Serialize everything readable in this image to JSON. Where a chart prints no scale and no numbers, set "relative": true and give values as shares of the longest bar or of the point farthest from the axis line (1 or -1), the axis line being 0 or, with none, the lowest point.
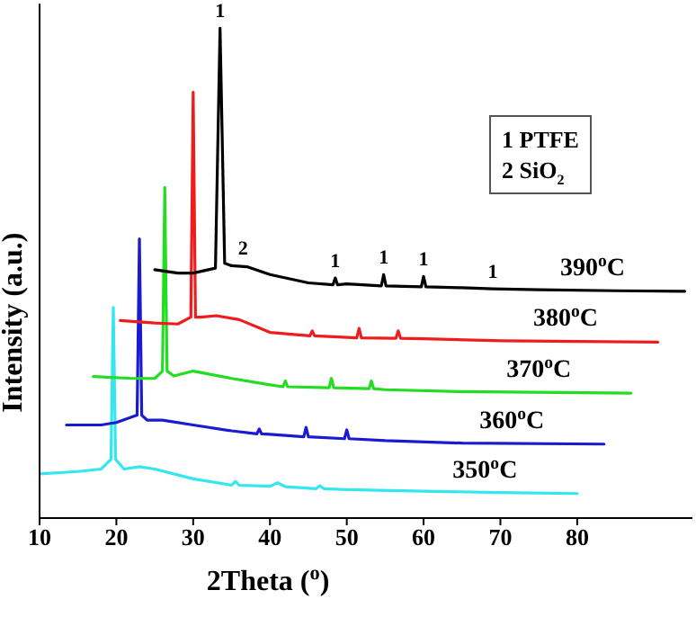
{
  "chart_data": {
    "type": "line",
    "relative": true,
    "xlabel": "2Theta ($^{o}$)",
    "ylabel": "Intensity (a.u.)",
    "xlim": [
      10,
      95
    ],
    "xticks": [
      10,
      20,
      30,
      40,
      50,
      60,
      70,
      80
    ],
    "grid": false,
    "legend": false,
    "marker": "none",
    "line_style": "solid",
    "series": [
      {
        "name": "350$^{o}$C",
        "color": "#33e6f0",
        "x": [
          10,
          15,
          18,
          19.3,
          19.6,
          19.9,
          21,
          23,
          25,
          30,
          35,
          35.5,
          36,
          40,
          41,
          42,
          46,
          46.5,
          47,
          50,
          60,
          70,
          80
        ],
        "values": [
          0.09,
          0.095,
          0.1,
          0.12,
          0.43,
          0.12,
          0.1,
          0.105,
          0.1,
          0.08,
          0.067,
          0.075,
          0.067,
          0.065,
          0.072,
          0.064,
          0.06,
          0.066,
          0.06,
          0.058,
          0.055,
          0.052,
          0.05
        ]
      },
      {
        "name": "360$^{o}$C",
        "color": "#1a1ad0",
        "x": [
          13.5,
          18,
          20,
          22.7,
          23,
          23.3,
          24,
          26,
          30,
          35,
          38.3,
          38.6,
          38.9,
          40,
          44.4,
          44.7,
          45,
          49.7,
          50,
          50.3,
          55,
          65,
          83.5
        ],
        "values": [
          0.19,
          0.19,
          0.195,
          0.21,
          0.57,
          0.21,
          0.2,
          0.2,
          0.19,
          0.178,
          0.172,
          0.182,
          0.172,
          0.171,
          0.166,
          0.185,
          0.166,
          0.162,
          0.18,
          0.162,
          0.158,
          0.153,
          0.151
        ]
      },
      {
        "name": "370$^{o}$C",
        "color": "#22dd22",
        "x": [
          17,
          22,
          25,
          26,
          26.3,
          26.6,
          27.5,
          30,
          35,
          40,
          41.7,
          42,
          42.3,
          47.7,
          48,
          48.3,
          52.9,
          53.2,
          53.5,
          55,
          65,
          87
        ],
        "values": [
          0.289,
          0.285,
          0.285,
          0.3,
          0.675,
          0.3,
          0.29,
          0.3,
          0.285,
          0.272,
          0.268,
          0.28,
          0.268,
          0.266,
          0.285,
          0.266,
          0.264,
          0.28,
          0.264,
          0.262,
          0.258,
          0.255
        ]
      },
      {
        "name": "380$^{o}$C",
        "color": "#ee1c1c",
        "x": [
          20.5,
          25,
          28,
          29.7,
          30,
          30.3,
          31,
          33,
          36,
          40,
          45.2,
          45.5,
          45.8,
          51.3,
          51.6,
          51.9,
          56.4,
          56.7,
          57,
          60,
          70,
          90.5
        ],
        "values": [
          0.403,
          0.398,
          0.396,
          0.41,
          0.869,
          0.41,
          0.41,
          0.413,
          0.405,
          0.379,
          0.372,
          0.382,
          0.372,
          0.368,
          0.387,
          0.368,
          0.367,
          0.382,
          0.367,
          0.366,
          0.362,
          0.359
        ]
      },
      {
        "name": "390$^{o}$C",
        "color": "#000000",
        "x": [
          25,
          28,
          30,
          32.9,
          33.5,
          34.1,
          35,
          37,
          40,
          45,
          48.2,
          48.5,
          48.8,
          50,
          54.5,
          54.8,
          55.1,
          59.7,
          60,
          60.3,
          65,
          69,
          75,
          85,
          94
        ],
        "values": [
          0.507,
          0.5,
          0.5,
          0.51,
          1.0,
          0.52,
          0.515,
          0.513,
          0.497,
          0.48,
          0.476,
          0.49,
          0.476,
          0.478,
          0.474,
          0.497,
          0.474,
          0.472,
          0.493,
          0.472,
          0.47,
          0.468,
          0.466,
          0.464,
          0.463
        ]
      }
    ],
    "annotations": [
      {
        "text": "1",
        "x": 33.5,
        "y": 1.0
      },
      {
        "text": "2",
        "x": 36.5,
        "y": 0.515
      },
      {
        "text": "1",
        "x": 48.5,
        "y": 0.49
      },
      {
        "text": "1",
        "x": 54.8,
        "y": 0.497
      },
      {
        "text": "1",
        "x": 60,
        "y": 0.493
      },
      {
        "text": "1",
        "x": 69,
        "y": 0.468
      },
      "1 PTFE",
      "2 SiO$_{2}$"
    ]
  }
}
